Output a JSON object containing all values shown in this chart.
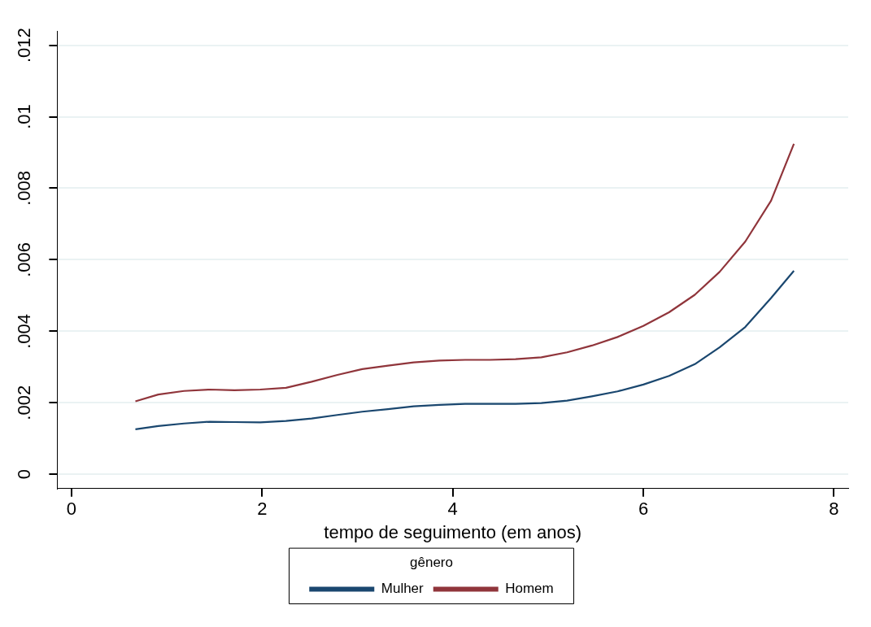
{
  "chart_data": {
    "type": "line",
    "xlabel": "tempo de seguimento (em anos)",
    "legend_title": "gênero",
    "legend": "bottom",
    "grid": "y",
    "marker": "none",
    "line_style": "solid",
    "xlim": [
      -0.15,
      8.15
    ],
    "xticks": [
      0,
      2,
      4,
      6,
      8
    ],
    "ylim": [
      -0.0004,
      0.0124
    ],
    "yticks": [
      0,
      {
        "value": 0.002,
        "label": ".002"
      },
      {
        "value": 0.004,
        "label": ".004"
      },
      {
        "value": 0.006,
        "label": ".006"
      },
      {
        "value": 0.008,
        "label": ".008"
      },
      {
        "value": 0.01,
        "label": ".01"
      },
      {
        "value": 0.012,
        "label": ".012"
      }
    ],
    "x": [
      0.67,
      0.91,
      1.18,
      1.45,
      1.71,
      1.98,
      2.25,
      2.52,
      2.79,
      3.05,
      3.32,
      3.59,
      3.86,
      4.13,
      4.39,
      4.66,
      4.93,
      5.2,
      5.46,
      5.73,
      6.0,
      6.27,
      6.54,
      6.8,
      7.07,
      7.34,
      7.58
    ],
    "series": [
      {
        "name": "Mulher",
        "color": "#1a476f",
        "values": [
          0.00126,
          0.00135,
          0.00142,
          0.00147,
          0.00146,
          0.00145,
          0.00149,
          0.00156,
          0.00166,
          0.00175,
          0.00182,
          0.0019,
          0.00194,
          0.00197,
          0.00197,
          0.00197,
          0.00199,
          0.00206,
          0.00218,
          0.00232,
          0.00251,
          0.00275,
          0.00308,
          0.00355,
          0.00412,
          0.00493,
          0.00569
        ]
      },
      {
        "name": "Homem",
        "color": "#90353b",
        "values": [
          0.00204,
          0.00223,
          0.00233,
          0.00237,
          0.00235,
          0.00237,
          0.00242,
          0.00259,
          0.00278,
          0.00294,
          0.00304,
          0.00313,
          0.00318,
          0.0032,
          0.0032,
          0.00322,
          0.00327,
          0.00341,
          0.0036,
          0.00384,
          0.00415,
          0.00453,
          0.00502,
          0.00566,
          0.00651,
          0.00765,
          0.00924
        ]
      }
    ]
  }
}
